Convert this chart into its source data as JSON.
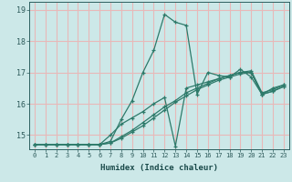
{
  "xlabel": "Humidex (Indice chaleur)",
  "background_color": "#cce8e8",
  "grid_color": "#e8b8b8",
  "line_color": "#2d7a6a",
  "xlim": [
    -0.5,
    23.5
  ],
  "ylim": [
    14.55,
    19.25
  ],
  "yticks": [
    15,
    16,
    17,
    18,
    19
  ],
  "xticks": [
    0,
    1,
    2,
    3,
    4,
    5,
    6,
    7,
    8,
    9,
    10,
    11,
    12,
    13,
    14,
    15,
    16,
    17,
    18,
    19,
    20,
    21,
    22,
    23
  ],
  "series": [
    [
      14.7,
      14.7,
      14.7,
      14.7,
      14.7,
      14.7,
      14.7,
      14.8,
      15.5,
      16.1,
      17.0,
      17.7,
      18.85,
      18.6,
      18.5,
      16.3,
      17.0,
      16.9,
      16.85,
      17.1,
      16.85,
      16.3,
      16.5,
      16.6
    ],
    [
      14.7,
      14.7,
      14.7,
      14.7,
      14.7,
      14.7,
      14.7,
      14.75,
      14.9,
      15.1,
      15.3,
      15.55,
      15.8,
      16.05,
      16.25,
      16.45,
      16.6,
      16.75,
      16.85,
      16.95,
      17.0,
      16.3,
      16.4,
      16.55
    ],
    [
      14.7,
      14.7,
      14.7,
      14.7,
      14.7,
      14.7,
      14.7,
      14.75,
      14.95,
      15.15,
      15.4,
      15.65,
      15.9,
      16.1,
      16.35,
      16.5,
      16.65,
      16.8,
      16.9,
      17.0,
      17.05,
      16.35,
      16.45,
      16.6
    ],
    [
      14.7,
      14.7,
      14.7,
      14.7,
      14.7,
      14.7,
      14.7,
      15.0,
      15.35,
      15.55,
      15.75,
      16.0,
      16.2,
      14.65,
      16.5,
      16.6,
      16.7,
      16.8,
      16.9,
      17.0,
      17.0,
      16.3,
      16.4,
      16.55
    ]
  ]
}
